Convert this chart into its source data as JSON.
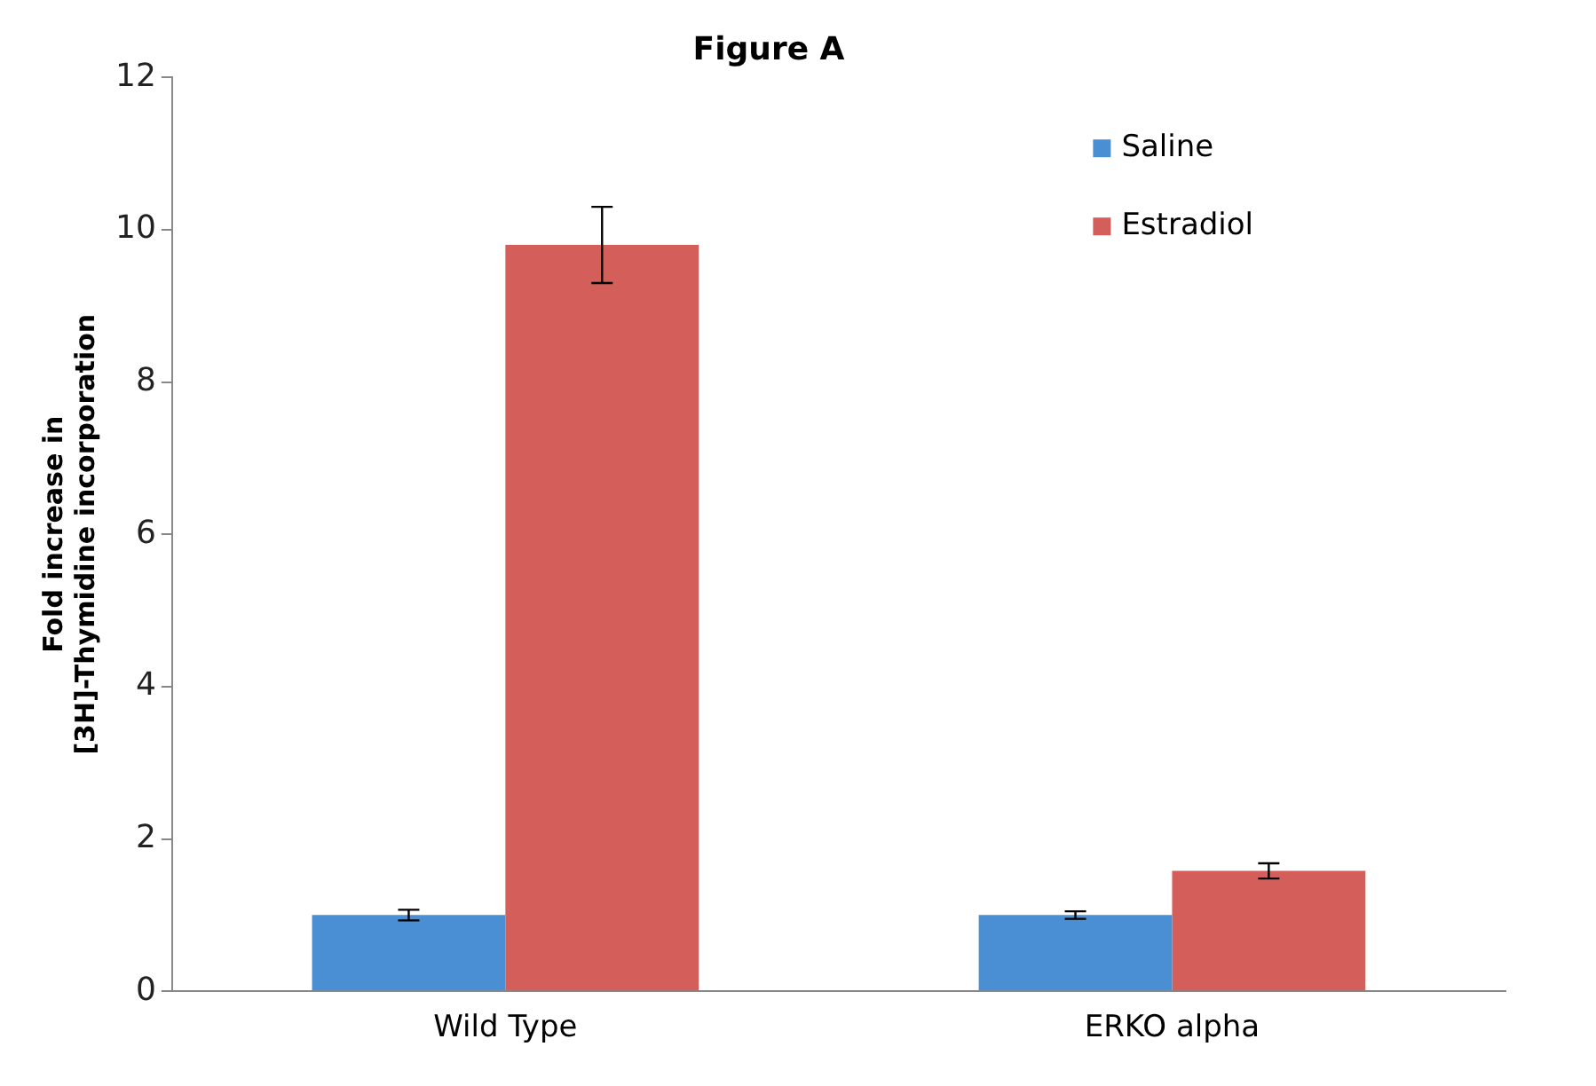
{
  "chart_data": {
    "type": "bar",
    "title": "Figure A",
    "ylabel": "Fold increase in [3H]-Thymidine incorporation",
    "categories": [
      "Wild Type",
      "ERKO alpha"
    ],
    "series": [
      {
        "name": "Saline",
        "color": "#4a8fd4",
        "values": [
          1.0,
          1.0
        ],
        "errors": [
          0.07,
          0.05
        ]
      },
      {
        "name": "Estradiol",
        "color": "#d45f5a",
        "values": [
          9.8,
          1.58
        ],
        "errors": [
          0.5,
          0.1
        ]
      }
    ],
    "ylim": [
      0,
      12
    ],
    "yticks": [
      0,
      2,
      4,
      6,
      8,
      10,
      12
    ],
    "grid": false,
    "legend": "top right"
  }
}
